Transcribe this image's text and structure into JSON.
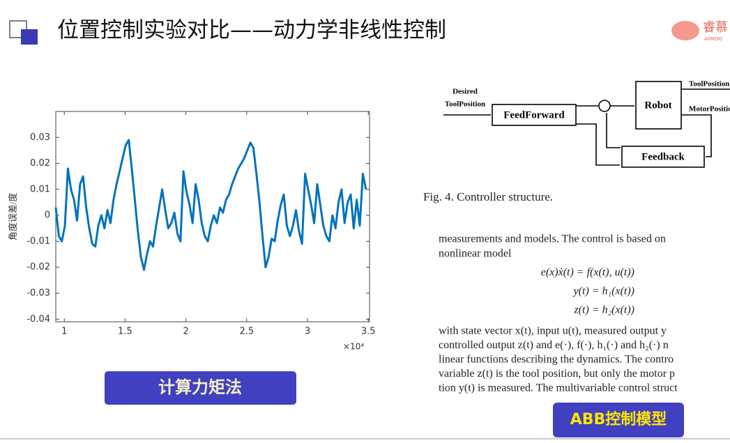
{
  "header": {
    "title": "位置控制实验对比——动力学非线性控制",
    "logo": "睿慕",
    "logo_sub": "AIIMOO"
  },
  "chart_data": {
    "type": "line",
    "ylabel": "角度误差/度",
    "x_multiplier": "×10⁴",
    "color": "#0072bd",
    "xlim": [
      0.93,
      3.51
    ],
    "ylim": [
      -0.041,
      0.04
    ],
    "xticks": [
      1,
      1.5,
      2,
      2.5,
      3,
      3.5
    ],
    "yticks": [
      -0.04,
      -0.03,
      -0.02,
      -0.01,
      0,
      0.01,
      0.02,
      0.03
    ],
    "x": [
      0.93,
      0.955,
      0.98,
      1.005,
      1.03,
      1.055,
      1.08,
      1.105,
      1.13,
      1.155,
      1.18,
      1.205,
      1.23,
      1.255,
      1.28,
      1.305,
      1.33,
      1.355,
      1.38,
      1.405,
      1.43,
      1.455,
      1.48,
      1.505,
      1.53,
      1.555,
      1.58,
      1.605,
      1.63,
      1.655,
      1.68,
      1.705,
      1.73,
      1.755,
      1.78,
      1.805,
      1.83,
      1.855,
      1.88,
      1.905,
      1.93,
      1.955,
      1.98,
      2.005,
      2.03,
      2.055,
      2.08,
      2.105,
      2.13,
      2.155,
      2.18,
      2.205,
      2.23,
      2.255,
      2.28,
      2.305,
      2.33,
      2.355,
      2.38,
      2.405,
      2.43,
      2.455,
      2.48,
      2.505,
      2.53,
      2.555,
      2.58,
      2.605,
      2.63,
      2.655,
      2.68,
      2.705,
      2.73,
      2.755,
      2.78,
      2.805,
      2.83,
      2.855,
      2.88,
      2.905,
      2.93,
      2.955,
      2.98,
      3.005,
      3.03,
      3.055,
      3.08,
      3.105,
      3.13,
      3.155,
      3.18,
      3.205,
      3.23,
      3.255,
      3.28,
      3.305,
      3.33,
      3.355,
      3.38,
      3.405,
      3.43,
      3.455,
      3.48
    ],
    "values": [
      0.003,
      -0.008,
      -0.01,
      -0.004,
      0.018,
      0.01,
      0.006,
      -0.002,
      0.012,
      0.015,
      0.003,
      -0.005,
      -0.011,
      -0.012,
      -0.004,
      0.0,
      -0.005,
      0.002,
      -0.003,
      0.006,
      0.012,
      0.017,
      0.022,
      0.027,
      0.029,
      0.018,
      0.006,
      -0.006,
      -0.016,
      -0.021,
      -0.015,
      -0.01,
      -0.012,
      -0.004,
      0.003,
      0.01,
      0.002,
      -0.005,
      -0.003,
      0.001,
      -0.007,
      -0.01,
      0.017,
      0.009,
      0.004,
      -0.003,
      0.012,
      0.006,
      -0.003,
      -0.008,
      -0.01,
      -0.004,
      0.0,
      -0.003,
      0.003,
      0.001,
      0.006,
      0.008,
      0.012,
      0.015,
      0.018,
      0.02,
      0.022,
      0.025,
      0.028,
      0.026,
      0.016,
      0.005,
      -0.008,
      -0.02,
      -0.016,
      -0.009,
      -0.01,
      -0.002,
      0.004,
      0.008,
      -0.004,
      -0.008,
      -0.004,
      0.002,
      -0.006,
      -0.011,
      0.016,
      0.01,
      0.004,
      -0.003,
      0.012,
      0.004,
      -0.004,
      -0.008,
      -0.01,
      0.0,
      -0.005,
      0.005,
      0.01,
      -0.003,
      0.005,
      0.008,
      -0.005,
      0.006,
      -0.004,
      0.016,
      0.01
    ]
  },
  "diagram": {
    "input": [
      "Desired",
      "ToolPosition"
    ],
    "feedforward": "FeedForward",
    "robot": "Robot",
    "feedback": "Feedback",
    "output_tool": "ToolPosition",
    "output_motor": "MotorPosition",
    "caption": "Fig. 4. Controller structure."
  },
  "paper": {
    "lines_top": [
      "measurements and models. The control is based on",
      "nonlinear model"
    ],
    "equations": [
      "e(x)ẋ(t) = f(x(t), u(t))",
      "y(t) = h₁(x(t))",
      "z(t) = h₂(x(t))"
    ],
    "lines_bottom": [
      "with state vector x(t), input u(t), measured output y",
      "controlled output z(t) and e(·), f(·), h₁(·) and h₂(·) n",
      "linear functions describing the dynamics. The contro",
      "variable z(t) is the tool position, but only the motor p",
      "tion y(t) is measured. The multivariable control struct"
    ]
  },
  "buttons": {
    "left": "计算力矩法",
    "right": "ABB控制模型"
  }
}
